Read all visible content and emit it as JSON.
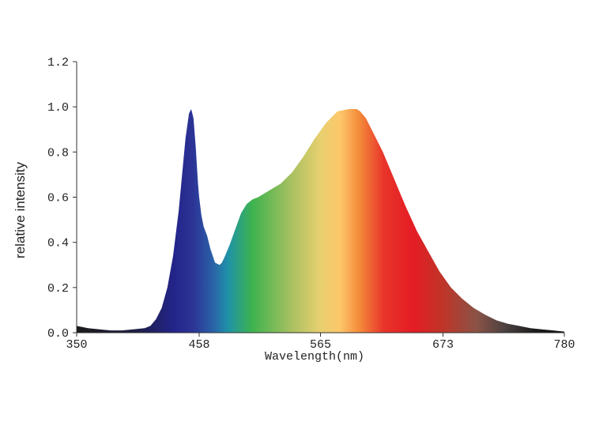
{
  "chart_data": {
    "type": "area",
    "title": "",
    "xlabel": "Wavelength(nm)",
    "ylabel": "relative intensity",
    "xlim": [
      350,
      780
    ],
    "ylim": [
      0,
      1.2
    ],
    "x_ticks": [
      350,
      458,
      565,
      673,
      780
    ],
    "x_tick_labels": [
      "350",
      "458",
      "565",
      "673",
      "780"
    ],
    "y_ticks": [
      0.0,
      0.2,
      0.4,
      0.6,
      0.8,
      1.0,
      1.2
    ],
    "y_tick_labels": [
      "0.0",
      "0.2",
      "0.4",
      "0.6",
      "0.8",
      "1.0",
      "1.2"
    ],
    "grid": false,
    "fill": "visible-spectrum gradient",
    "series": [
      {
        "x": [
          350,
          360,
          370,
          380,
          390,
          400,
          410,
          415,
          420,
          425,
          430,
          435,
          440,
          443,
          446,
          449,
          451,
          453,
          455,
          457,
          458,
          460,
          462,
          465,
          468,
          472,
          476,
          478,
          480,
          485,
          490,
          495,
          500,
          505,
          510,
          520,
          530,
          540,
          550,
          560,
          570,
          580,
          590,
          597,
          600,
          605,
          610,
          620,
          630,
          640,
          650,
          660,
          670,
          680,
          690,
          700,
          710,
          720,
          730,
          740,
          750,
          760,
          770,
          780
        ],
        "y": [
          0.03,
          0.02,
          0.015,
          0.01,
          0.01,
          0.015,
          0.02,
          0.03,
          0.06,
          0.11,
          0.2,
          0.34,
          0.54,
          0.7,
          0.86,
          0.97,
          0.99,
          0.95,
          0.82,
          0.66,
          0.6,
          0.52,
          0.47,
          0.43,
          0.37,
          0.31,
          0.3,
          0.31,
          0.33,
          0.39,
          0.46,
          0.53,
          0.57,
          0.59,
          0.6,
          0.63,
          0.66,
          0.71,
          0.78,
          0.86,
          0.93,
          0.98,
          0.99,
          0.99,
          0.98,
          0.95,
          0.9,
          0.8,
          0.68,
          0.56,
          0.45,
          0.36,
          0.27,
          0.2,
          0.15,
          0.11,
          0.08,
          0.055,
          0.04,
          0.03,
          0.02,
          0.015,
          0.01,
          0.005
        ]
      }
    ]
  }
}
